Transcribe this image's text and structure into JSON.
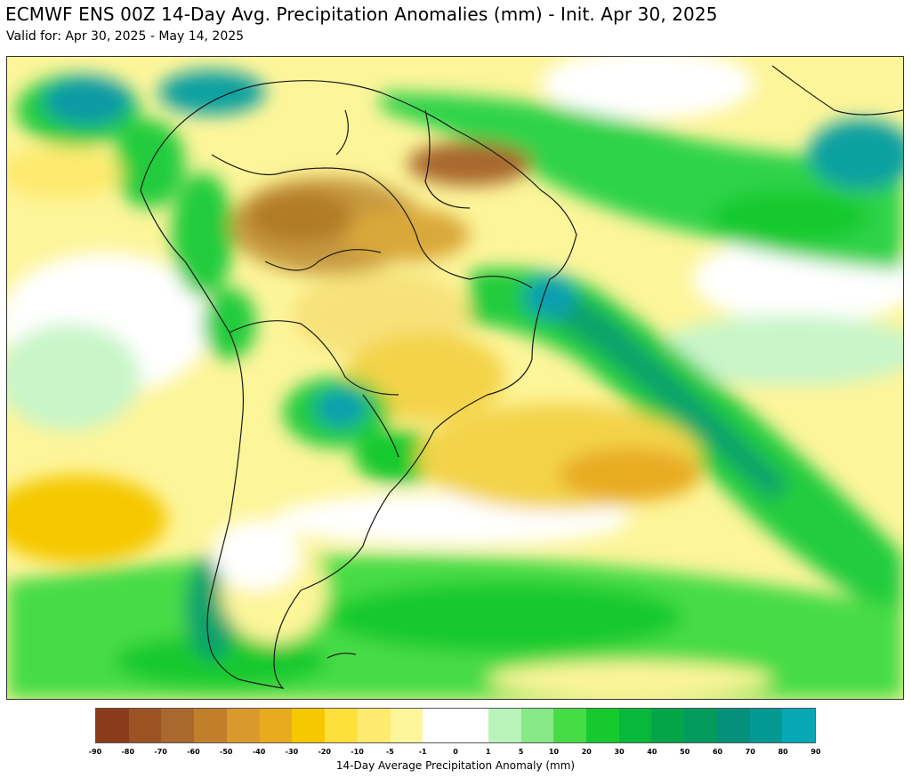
{
  "header": {
    "title": "ECMWF ENS 00Z 14-Day Avg. Precipitation Anomalies (mm) - Init. Apr 30, 2025",
    "subtitle": "Valid for: Apr 30, 2025 - May 14, 2025"
  },
  "map": {
    "region": "South America",
    "field": "precipitation-anomaly",
    "colors": {
      "ocean_base": "#fdf59a",
      "dry_strong": "#b27b28",
      "dry_moderate": "#d9a83a",
      "dry_light": "#f3d34a",
      "neutral": "#ffffff",
      "wet_light": "#8ee88e",
      "wet_moderate": "#22cc3c",
      "wet_strong": "#0aa36a",
      "wet_extreme": "#0b9fb0",
      "borders": "#1a1a1a"
    }
  },
  "colorbar": {
    "label": "14-Day Average Precipitation Anomaly (mm)",
    "ticks": [
      "-90",
      "-80",
      "-70",
      "-60",
      "-50",
      "-40",
      "-30",
      "-20",
      "-10",
      "-5",
      "-1",
      "0",
      "1",
      "5",
      "10",
      "20",
      "30",
      "40",
      "50",
      "60",
      "70",
      "80",
      "90"
    ],
    "colors": [
      "#8b3a1a",
      "#9c5222",
      "#a8682e",
      "#c17f2b",
      "#d9992c",
      "#e8ab20",
      "#f5c800",
      "#fde13a",
      "#fdea6e",
      "#fdf59a",
      "#ffffff",
      "#ffffff",
      "#b9f3b9",
      "#86e886",
      "#46dc46",
      "#16c92e",
      "#08b83a",
      "#03a548",
      "#039a5e",
      "#04907a",
      "#049892",
      "#05a8b4"
    ]
  }
}
